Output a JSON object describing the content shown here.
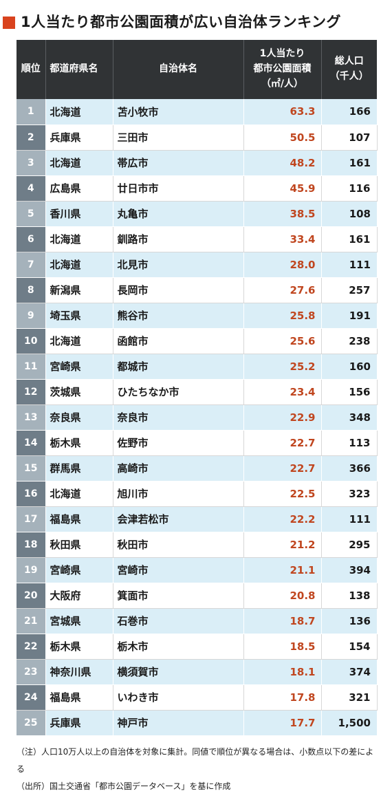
{
  "title": "1人当たり都市公園面積が広い自治体ランキング",
  "accent_color": "#d9431e",
  "value_color": "#c0461f",
  "header": {
    "rank": "順位",
    "prefecture": "都道府県名",
    "municipality": "自治体名",
    "area_line1": "1人当たり",
    "area_line2": "都市公園面積",
    "area_line3": "（㎡/人）",
    "pop_line1": "総人口",
    "pop_line2": "（千人）"
  },
  "rows": [
    {
      "rank": "1",
      "pref": "北海道",
      "name": "苫小牧市",
      "area": "63.3",
      "pop": "166"
    },
    {
      "rank": "2",
      "pref": "兵庫県",
      "name": "三田市",
      "area": "50.5",
      "pop": "107"
    },
    {
      "rank": "3",
      "pref": "北海道",
      "name": "帯広市",
      "area": "48.2",
      "pop": "161"
    },
    {
      "rank": "4",
      "pref": "広島県",
      "name": "廿日市市",
      "area": "45.9",
      "pop": "116"
    },
    {
      "rank": "5",
      "pref": "香川県",
      "name": "丸亀市",
      "area": "38.5",
      "pop": "108"
    },
    {
      "rank": "6",
      "pref": "北海道",
      "name": "釧路市",
      "area": "33.4",
      "pop": "161"
    },
    {
      "rank": "7",
      "pref": "北海道",
      "name": "北見市",
      "area": "28.0",
      "pop": "111"
    },
    {
      "rank": "8",
      "pref": "新潟県",
      "name": "長岡市",
      "area": "27.6",
      "pop": "257"
    },
    {
      "rank": "9",
      "pref": "埼玉県",
      "name": "熊谷市",
      "area": "25.8",
      "pop": "191"
    },
    {
      "rank": "10",
      "pref": "北海道",
      "name": "函館市",
      "area": "25.6",
      "pop": "238"
    },
    {
      "rank": "11",
      "pref": "宮崎県",
      "name": "都城市",
      "area": "25.2",
      "pop": "160"
    },
    {
      "rank": "12",
      "pref": "茨城県",
      "name": "ひたちなか市",
      "area": "23.4",
      "pop": "156"
    },
    {
      "rank": "13",
      "pref": "奈良県",
      "name": "奈良市",
      "area": "22.9",
      "pop": "348"
    },
    {
      "rank": "14",
      "pref": "栃木県",
      "name": "佐野市",
      "area": "22.7",
      "pop": "113"
    },
    {
      "rank": "15",
      "pref": "群馬県",
      "name": "高崎市",
      "area": "22.7",
      "pop": "366"
    },
    {
      "rank": "16",
      "pref": "北海道",
      "name": "旭川市",
      "area": "22.5",
      "pop": "323"
    },
    {
      "rank": "17",
      "pref": "福島県",
      "name": "会津若松市",
      "area": "22.2",
      "pop": "111"
    },
    {
      "rank": "18",
      "pref": "秋田県",
      "name": "秋田市",
      "area": "21.2",
      "pop": "295"
    },
    {
      "rank": "19",
      "pref": "宮崎県",
      "name": "宮崎市",
      "area": "21.1",
      "pop": "394"
    },
    {
      "rank": "20",
      "pref": "大阪府",
      "name": "箕面市",
      "area": "20.8",
      "pop": "138"
    },
    {
      "rank": "21",
      "pref": "宮城県",
      "name": "石巻市",
      "area": "18.7",
      "pop": "136"
    },
    {
      "rank": "22",
      "pref": "栃木県",
      "name": "栃木市",
      "area": "18.5",
      "pop": "154"
    },
    {
      "rank": "23",
      "pref": "神奈川県",
      "name": "横須賀市",
      "area": "18.1",
      "pop": "374"
    },
    {
      "rank": "24",
      "pref": "福島県",
      "name": "いわき市",
      "area": "17.8",
      "pop": "321"
    },
    {
      "rank": "25",
      "pref": "兵庫県",
      "name": "神戸市",
      "area": "17.7",
      "pop": "1,500"
    }
  ],
  "notes": {
    "note": "（注）人口10万人以上の自治体を対象に集計。同値で順位が異なる場合は、小数点以下の差による",
    "source": "（出所）国土交通省「都市公園データベース」を基に作成"
  }
}
